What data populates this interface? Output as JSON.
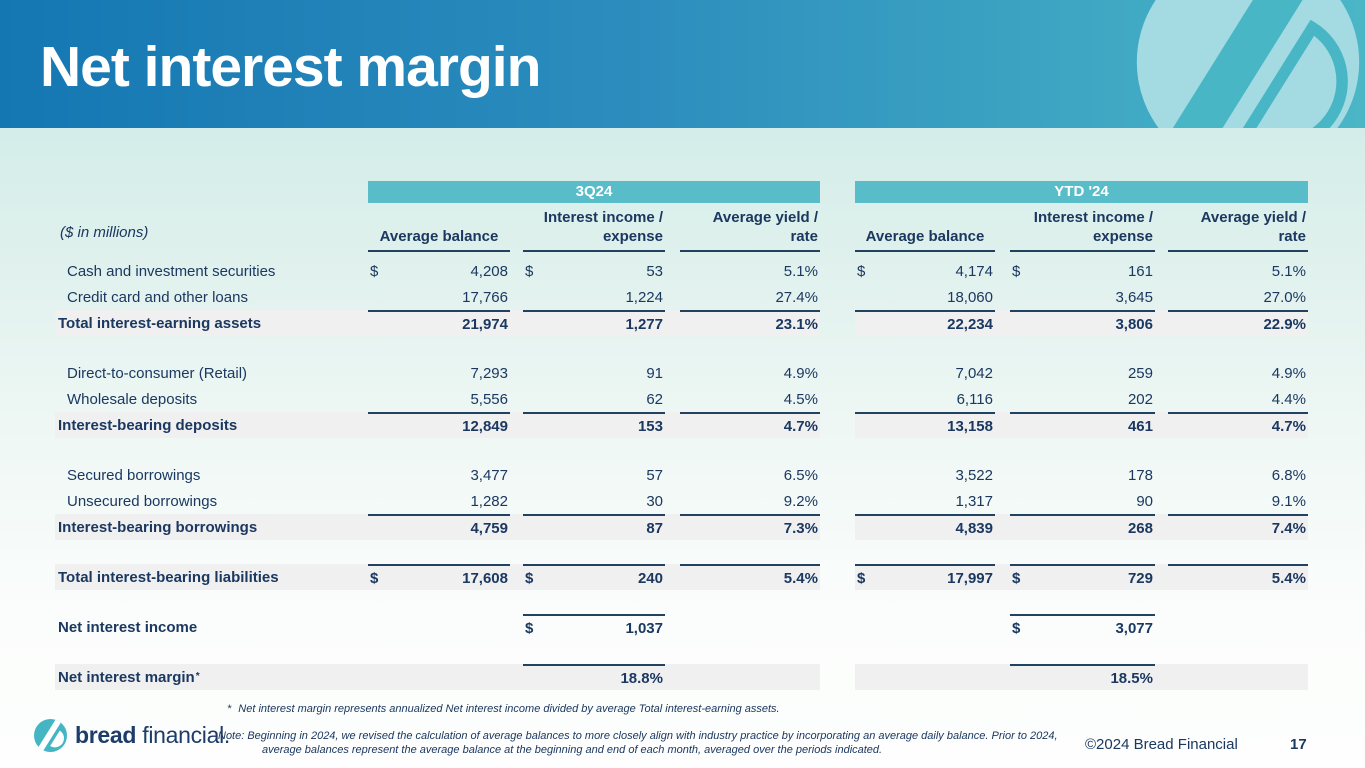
{
  "slide": {
    "title": "Net interest margin",
    "colors": {
      "header_left": "#1577b2",
      "header_right": "#4ab6c6",
      "band_teal": "#58bdc8",
      "navy_text": "#1b3860",
      "shaded_row": "#f0f0f1",
      "watermark_light": "#a4dbe2",
      "logo_teal": "#43b5c3"
    },
    "footnotes": {
      "fn1_marker": "*",
      "fn1": "Net interest margin represents annualized Net interest income divided by average Total interest-earning assets.",
      "note": "Note: Beginning in 2024, we revised the calculation of average balances to more closely align with industry practice by incorporating an average daily balance. Prior to 2024, average balances represent the average balance at the beginning and end of each month, averaged over the periods indicated."
    },
    "footer": {
      "brand_bold": "bread",
      "brand_light": "financial.",
      "copyright": "©2024 Bread Financial",
      "page_number": "17"
    }
  },
  "table": {
    "units_label": "($ in millions)",
    "periods": [
      "3Q24",
      "YTD '24"
    ],
    "column_headers": [
      {
        "l1": "Average balance",
        "l2": ""
      },
      {
        "l1": "Interest income /",
        "l2": "expense"
      },
      {
        "l1": "Average yield /",
        "l2": "rate"
      }
    ],
    "groups": [
      [
        {
          "label": "Cash and investment securities",
          "bold": false,
          "shaded": false,
          "rule": "none",
          "cells": [
            {
              "d": "$",
              "v": "4,208"
            },
            {
              "d": "$",
              "v": "53"
            },
            {
              "v": "5.1%"
            },
            {
              "d": "$",
              "v": "4,174"
            },
            {
              "d": "$",
              "v": "161"
            },
            {
              "v": "5.1%"
            }
          ]
        },
        {
          "label": "Credit card and other loans",
          "bold": false,
          "shaded": false,
          "rule": "none",
          "cells": [
            {
              "v": "17,766"
            },
            {
              "v": "1,224"
            },
            {
              "v": "27.4%"
            },
            {
              "v": "18,060"
            },
            {
              "v": "3,645"
            },
            {
              "v": "27.0%"
            }
          ]
        },
        {
          "label": "Total interest-earning assets",
          "bold": true,
          "shaded": true,
          "rule": "all",
          "cells": [
            {
              "v": "21,974"
            },
            {
              "v": "1,277"
            },
            {
              "v": "23.1%"
            },
            {
              "v": "22,234"
            },
            {
              "v": "3,806"
            },
            {
              "v": "22.9%"
            }
          ]
        }
      ],
      [
        {
          "label": "Direct-to-consumer (Retail)",
          "bold": false,
          "shaded": false,
          "rule": "none",
          "cells": [
            {
              "v": "7,293"
            },
            {
              "v": "91"
            },
            {
              "v": "4.9%"
            },
            {
              "v": "7,042"
            },
            {
              "v": "259"
            },
            {
              "v": "4.9%"
            }
          ]
        },
        {
          "label": "Wholesale deposits",
          "bold": false,
          "shaded": false,
          "rule": "none",
          "cells": [
            {
              "v": "5,556"
            },
            {
              "v": "62"
            },
            {
              "v": "4.5%"
            },
            {
              "v": "6,116"
            },
            {
              "v": "202"
            },
            {
              "v": "4.4%"
            }
          ]
        },
        {
          "label": "Interest-bearing deposits",
          "bold": true,
          "shaded": true,
          "rule": "all",
          "cells": [
            {
              "v": "12,849"
            },
            {
              "v": "153"
            },
            {
              "v": "4.7%"
            },
            {
              "v": "13,158"
            },
            {
              "v": "461"
            },
            {
              "v": "4.7%"
            }
          ]
        }
      ],
      [
        {
          "label": "Secured borrowings",
          "bold": false,
          "shaded": false,
          "rule": "none",
          "cells": [
            {
              "v": "3,477"
            },
            {
              "v": "57"
            },
            {
              "v": "6.5%"
            },
            {
              "v": "3,522"
            },
            {
              "v": "178"
            },
            {
              "v": "6.8%"
            }
          ]
        },
        {
          "label": "Unsecured borrowings",
          "bold": false,
          "shaded": false,
          "rule": "none",
          "cells": [
            {
              "v": "1,282"
            },
            {
              "v": "30"
            },
            {
              "v": "9.2%"
            },
            {
              "v": "1,317"
            },
            {
              "v": "90"
            },
            {
              "v": "9.1%"
            }
          ]
        },
        {
          "label": "Interest-bearing borrowings",
          "bold": true,
          "shaded": true,
          "rule": "all",
          "cells": [
            {
              "v": "4,759"
            },
            {
              "v": "87"
            },
            {
              "v": "7.3%"
            },
            {
              "v": "4,839"
            },
            {
              "v": "268"
            },
            {
              "v": "7.4%"
            }
          ]
        }
      ],
      [
        {
          "label": "Total interest-bearing liabilities",
          "bold": true,
          "shaded": true,
          "rule": "all",
          "cells": [
            {
              "d": "$",
              "v": "17,608"
            },
            {
              "d": "$",
              "v": "240"
            },
            {
              "v": "5.4%"
            },
            {
              "d": "$",
              "v": "17,997"
            },
            {
              "d": "$",
              "v": "729"
            },
            {
              "v": "5.4%"
            }
          ]
        }
      ],
      [
        {
          "label": "Net interest income",
          "bold": true,
          "shaded": false,
          "rule": "income",
          "cells": [
            null,
            {
              "d": "$",
              "v": "1,037"
            },
            null,
            null,
            {
              "d": "$",
              "v": "3,077"
            },
            null
          ]
        }
      ],
      [
        {
          "label": "Net interest margin",
          "sup": "*",
          "bold": true,
          "shaded": true,
          "rule": "income",
          "cells": [
            null,
            {
              "v": "18.8%"
            },
            null,
            null,
            {
              "v": "18.5%"
            },
            null
          ]
        }
      ]
    ]
  }
}
